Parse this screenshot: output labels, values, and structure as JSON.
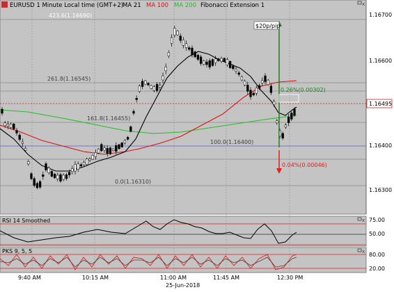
{
  "header": {
    "symbol": "EURUSD 1 Minute Local time (GMT+2)",
    "ma21": "MA 21",
    "ma100": "MA 100",
    "ma200": "MA 200",
    "fib": "Fibonacci Extension 1"
  },
  "colors": {
    "panel_bg": "#c4c4c4",
    "ma21": "#000000",
    "ma100": "#e01010",
    "ma200": "#20c020",
    "fib_line": "#8a8a8a",
    "up_arrow": "#208020",
    "down_arrow": "#e02020",
    "blue_line": "#5060d0",
    "price_tag_border": "#d02020"
  },
  "price_axis": {
    "ticks": [
      "1.16700",
      "1.16600",
      "1.16400",
      "1.16300"
    ],
    "current": "1.16495"
  },
  "fib_labels": {
    "l4236": "423.6(1.16690)",
    "l2618": "261.8(1.16545)",
    "l1618": "161.8(1.16455)",
    "l1000": "100.0(1.16400)",
    "l0": "0.0(1.16310)"
  },
  "measures": {
    "up_label": "$20p/pip",
    "up_pct": "0.26%(0.00302)",
    "down_pct": "0.04%(0.00046)"
  },
  "rsi": {
    "title": "RSI 14 Smoothed",
    "ticks": [
      "75.00",
      "50.00"
    ]
  },
  "pks": {
    "title": "PKS 9, 5, 5",
    "ticks": [
      "80.00",
      "20.00"
    ]
  },
  "time_axis": {
    "ticks": [
      "9:40 AM",
      "10:15 AM",
      "11:00 AM",
      "11:45 AM",
      "12:30 PM"
    ],
    "date": "25-Jun-2018"
  }
}
